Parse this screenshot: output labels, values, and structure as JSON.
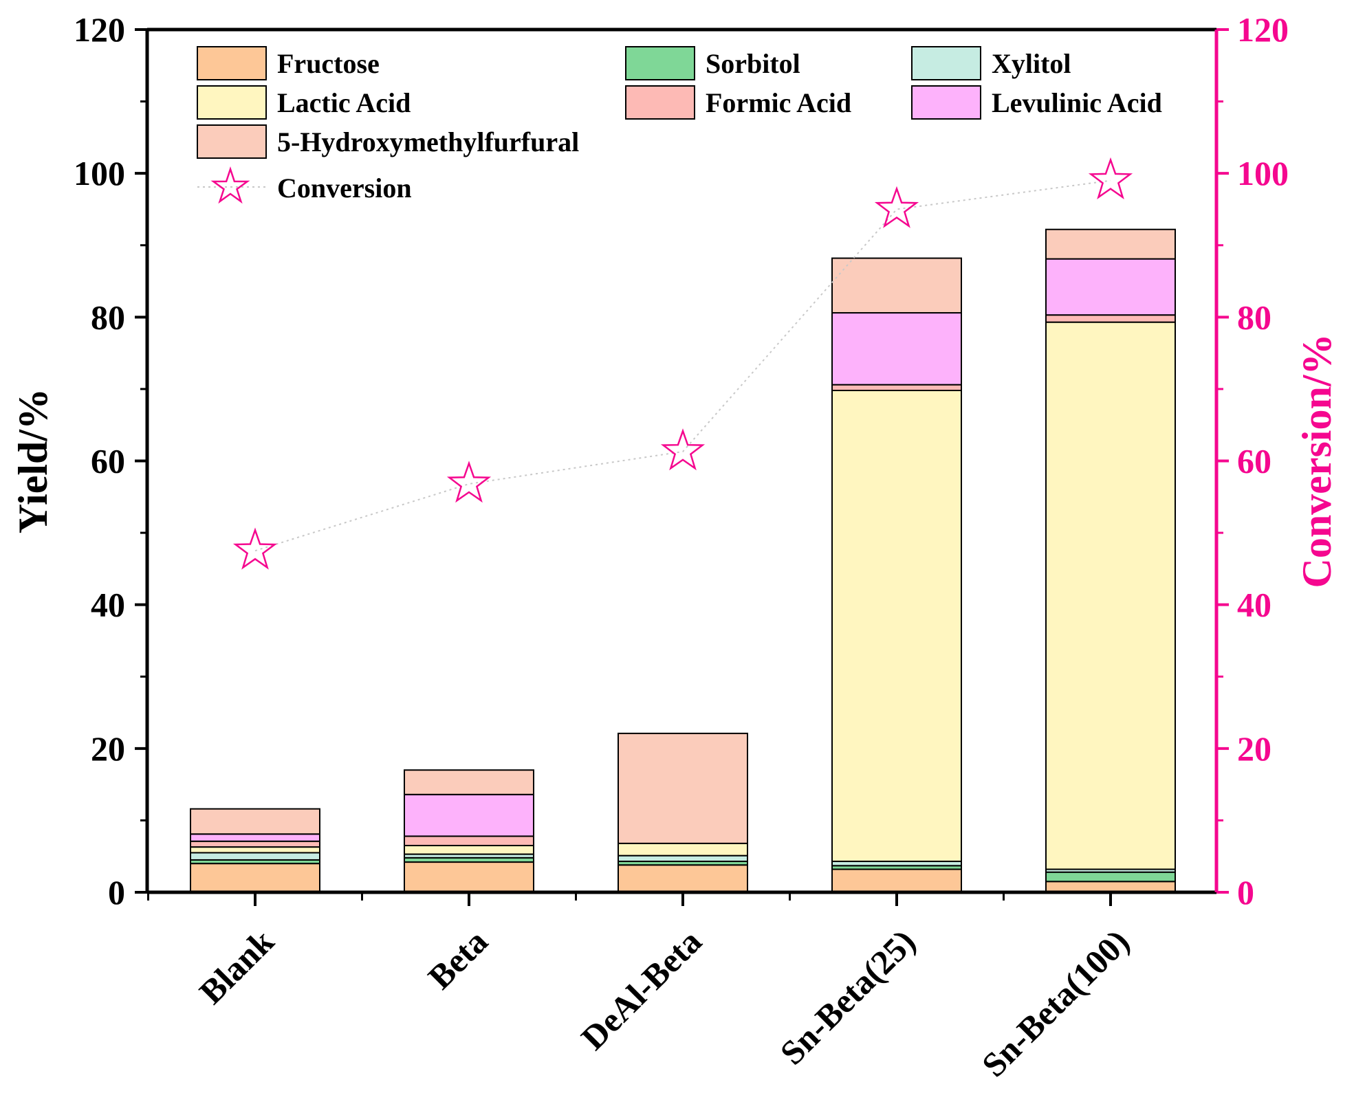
{
  "chart_data": {
    "type": "bar",
    "stacked": true,
    "categories": [
      "Blank",
      "Beta",
      "DeAl-Beta",
      "Sn-Beta(25)",
      "Sn-Beta(100)"
    ],
    "series": [
      {
        "name": "Fructose",
        "color": "#fdc797",
        "values": [
          4.0,
          4.2,
          3.8,
          3.2,
          1.5
        ]
      },
      {
        "name": "Sorbitol",
        "color": "#7fd797",
        "values": [
          0.5,
          0.6,
          0.5,
          0.5,
          1.3
        ]
      },
      {
        "name": "Xylitol",
        "color": "#c6ece2",
        "values": [
          1.0,
          0.5,
          0.8,
          0.6,
          0.4
        ]
      },
      {
        "name": "Lactic Acid",
        "color": "#fff6c0",
        "values": [
          0.8,
          1.2,
          1.7,
          65.5,
          76.1
        ]
      },
      {
        "name": "Formic Acid",
        "color": "#fdbab5",
        "values": [
          0.8,
          1.3,
          0.0,
          0.8,
          1.0
        ]
      },
      {
        "name": "Levulinic Acid",
        "color": "#fdb2fb",
        "values": [
          1.0,
          5.8,
          0.0,
          10.0,
          7.8
        ]
      },
      {
        "name": "5-Hydroxymethylfurfural",
        "color": "#fbccbb",
        "values": [
          3.5,
          3.4,
          15.3,
          7.6,
          4.1
        ]
      }
    ],
    "line_series": {
      "name": "Conversion",
      "color": "#f5078f",
      "axis": "right",
      "marker": "star",
      "values": [
        47.5,
        56.8,
        61.3,
        95.0,
        99.0
      ]
    },
    "ylabel": "Yield/%",
    "y2label": "Conversion/%",
    "ylim": [
      0,
      120
    ],
    "y2lim": [
      0,
      120
    ],
    "yticks": [
      0,
      20,
      40,
      60,
      80,
      100,
      120
    ],
    "y2ticks": [
      0,
      20,
      40,
      60,
      80,
      100,
      120
    ],
    "legend_position": "top-left, inside",
    "grid": false
  }
}
